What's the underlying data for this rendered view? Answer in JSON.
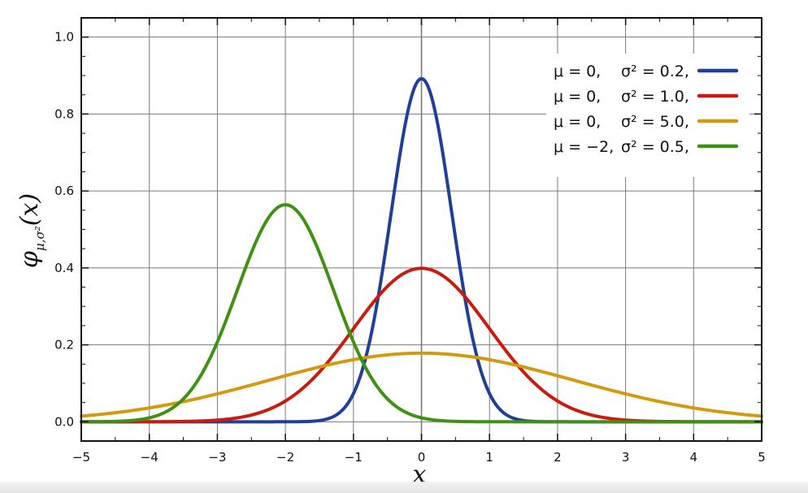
{
  "chart_data": {
    "type": "line",
    "title": "",
    "xlabel": "x",
    "ylabel": "φμ,σ²(x)",
    "xlim": [
      -5,
      5
    ],
    "ylim": [
      -0.05,
      1.05
    ],
    "x_ticks": [
      -5,
      -4,
      -3,
      -2,
      -1,
      0,
      1,
      2,
      3,
      4,
      5
    ],
    "x_tick_labels": [
      "−5",
      "−4",
      "−3",
      "−2",
      "−1",
      "0",
      "1",
      "2",
      "3",
      "4",
      "5"
    ],
    "y_ticks": [
      0.0,
      0.2,
      0.4,
      0.6,
      0.8,
      1.0
    ],
    "y_tick_labels": [
      "0.0",
      "0.2",
      "0.4",
      "0.6",
      "0.8",
      "1.0"
    ],
    "grid": true,
    "legend_position": "top-right",
    "series": [
      {
        "name": "μ = 0, σ² = 0.2,",
        "mu_text": "μ = 0,",
        "sigma_text": "σ² = 0.2,",
        "mu": 0,
        "variance": 0.2,
        "color": "#1f3f99",
        "x": [
          -5.0,
          -1.5,
          -1.25,
          -1.0,
          -0.8,
          -0.6,
          -0.4,
          -0.2,
          0.0,
          0.2,
          0.4,
          0.6,
          0.8,
          1.0,
          1.25,
          1.5,
          5.0
        ],
        "y": [
          0.0,
          0.004,
          0.018,
          0.073,
          0.181,
          0.363,
          0.598,
          0.807,
          0.892,
          0.807,
          0.598,
          0.363,
          0.181,
          0.073,
          0.018,
          0.004,
          0.0
        ]
      },
      {
        "name": "μ = 0, σ² = 1.0,",
        "mu_text": "μ = 0,",
        "sigma_text": "σ² = 1.0,",
        "mu": 0,
        "variance": 1.0,
        "color": "#cc1a0d",
        "x": [
          -5.0,
          -4.0,
          -3.0,
          -2.5,
          -2.0,
          -1.5,
          -1.0,
          -0.5,
          0.0,
          0.5,
          1.0,
          1.5,
          2.0,
          2.5,
          3.0,
          4.0,
          5.0
        ],
        "y": [
          0.0,
          0.0001,
          0.004,
          0.018,
          0.054,
          0.13,
          0.242,
          0.352,
          0.399,
          0.352,
          0.242,
          0.13,
          0.054,
          0.018,
          0.004,
          0.0001,
          0.0
        ]
      },
      {
        "name": "μ = 0, σ² = 5.0,",
        "mu_text": "μ = 0,",
        "sigma_text": "σ² = 5.0,",
        "mu": 0,
        "variance": 5.0,
        "color": "#d49a0e",
        "x": [
          -5.0,
          -4.0,
          -3.0,
          -2.0,
          -1.0,
          0.0,
          1.0,
          2.0,
          3.0,
          4.0,
          5.0
        ],
        "y": [
          0.015,
          0.036,
          0.073,
          0.12,
          0.161,
          0.178,
          0.161,
          0.12,
          0.073,
          0.036,
          0.015
        ]
      },
      {
        "name": "μ = −2, σ² = 0.5,",
        "mu_text": "μ = −2,",
        "sigma_text": "σ² = 0.5,",
        "mu": -2,
        "variance": 0.5,
        "color": "#3f9113",
        "x": [
          -5.0,
          -4.5,
          -4.0,
          -3.5,
          -3.0,
          -2.5,
          -2.0,
          -1.5,
          -1.0,
          -0.5,
          0.0,
          0.5,
          1.0,
          5.0
        ],
        "y": [
          0.0,
          0.001,
          0.01,
          0.059,
          0.208,
          0.439,
          0.564,
          0.439,
          0.208,
          0.059,
          0.01,
          0.001,
          0.0,
          0.0
        ]
      }
    ]
  }
}
